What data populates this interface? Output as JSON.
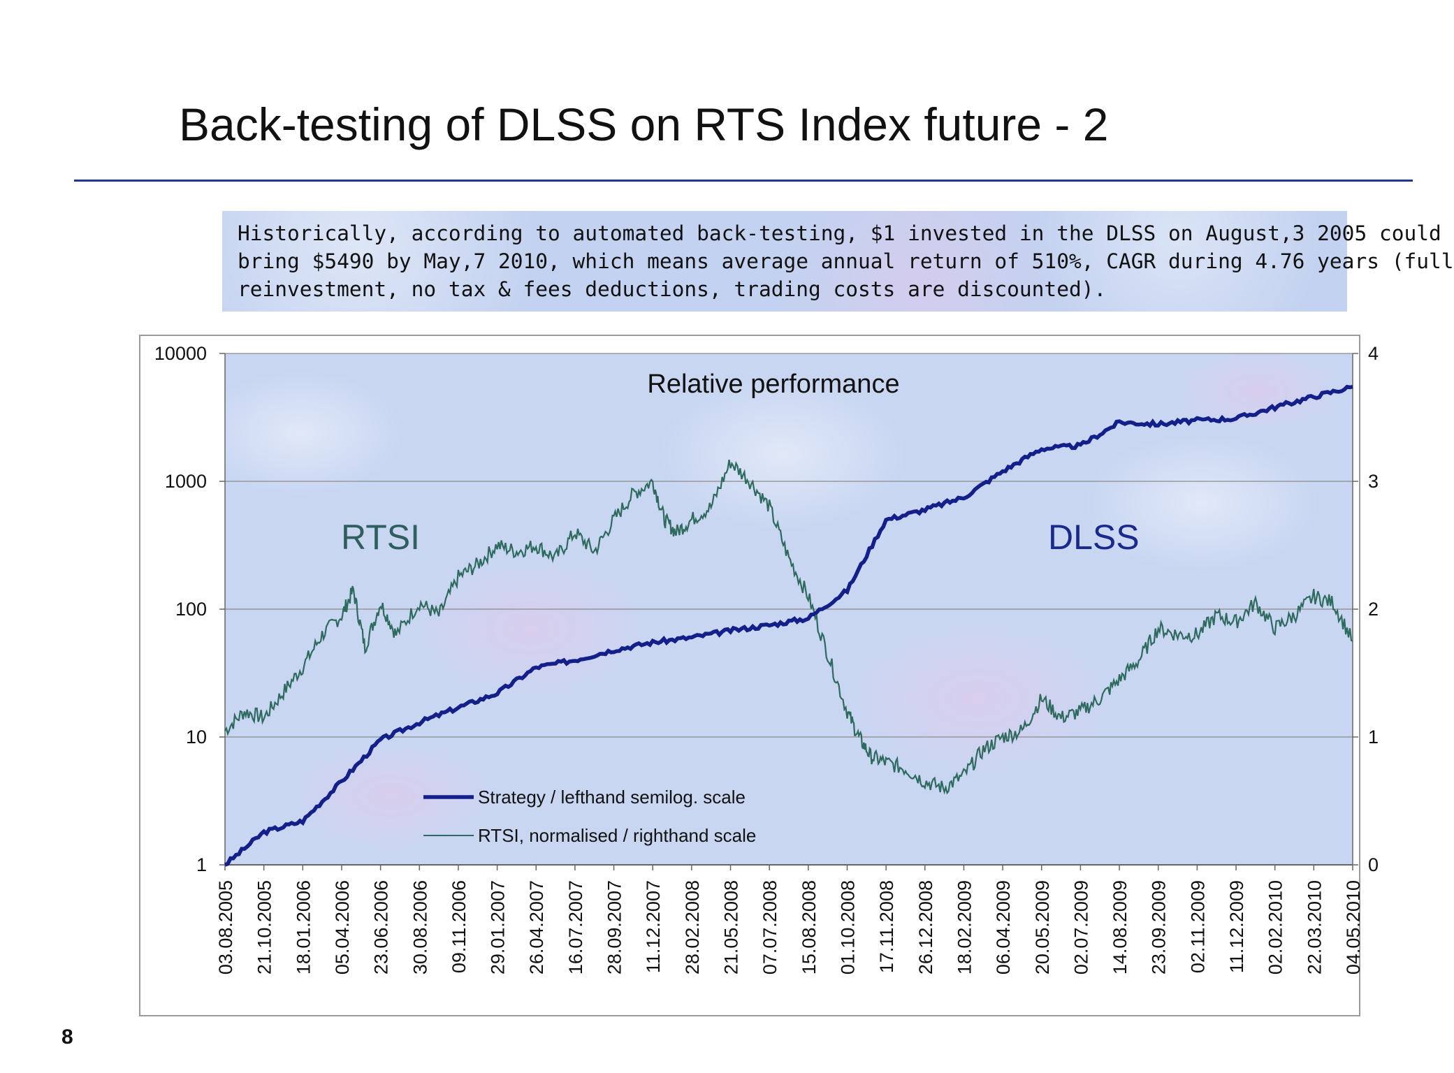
{
  "slide": {
    "title": "Back-testing of DLSS on RTS Index future - 2",
    "text_lines": [
      "Historically, according to automated back-testing, $1 invested in the DLSS on August,3 2005 could",
      "bring $5490 by May,7 2010, which means average annual return of 510%, CAGR during 4.76 years (full",
      "reinvestment, no tax & fees deductions, trading costs are discounted)."
    ],
    "page_number": "8",
    "accent_color": "#1a3a8f"
  },
  "chart_data": {
    "type": "line",
    "title": "Relative performance",
    "x_tick_labels": [
      "03.08.2005",
      "21.10.2005",
      "18.01.2006",
      "05.04.2006",
      "23.06.2006",
      "30.08.2006",
      "09.11.2006",
      "29.01.2007",
      "26.04.2007",
      "16.07.2007",
      "28.09.2007",
      "11.12.2007",
      "28.02.2008",
      "21.05.2008",
      "07.07.2008",
      "15.08.2008",
      "01.10.2008",
      "17.11.2008",
      "26.12.2008",
      "18.02.2009",
      "06.04.2009",
      "20.05.2009",
      "02.07.2009",
      "14.08.2009",
      "23.09.2009",
      "02.11.2009",
      "11.12.2009",
      "02.02.2010",
      "22.03.2010",
      "04.05.2010"
    ],
    "y_left": {
      "scale": "log",
      "range": [
        1,
        10000
      ],
      "ticks": [
        "1",
        "10",
        "100",
        "1000",
        "10000"
      ]
    },
    "y_right": {
      "scale": "linear",
      "range": [
        0,
        4
      ],
      "ticks": [
        "0",
        "1",
        "2",
        "3",
        "4"
      ]
    },
    "grid": "horizontal",
    "legend_position": "bottom-center",
    "annotations": [
      {
        "text": "RTSI",
        "color": "#2e5e5e"
      },
      {
        "text": "DLSS",
        "color": "#1a2a8c"
      }
    ],
    "series": [
      {
        "name": "Strategy / lefthand semilog. scale",
        "axis": "left",
        "color": "#14208a",
        "x_index": [
          0,
          1,
          2,
          3,
          4,
          5,
          6,
          7,
          8,
          9,
          10,
          11,
          12,
          13,
          14,
          15,
          16,
          17,
          18,
          19,
          20,
          21,
          22,
          23,
          24,
          25,
          26,
          27,
          28,
          29
        ],
        "values": [
          1,
          1.8,
          2.2,
          4.5,
          9.5,
          13,
          17,
          22,
          35,
          40,
          48,
          55,
          60,
          68,
          75,
          85,
          140,
          500,
          600,
          750,
          1200,
          1800,
          1900,
          2900,
          2800,
          3000,
          3100,
          3800,
          4600,
          5490
        ]
      },
      {
        "name": "RTSI, normalised / righthand scale",
        "axis": "right",
        "color": "#2e6b5e",
        "x_index": [
          0,
          0.5,
          1,
          1.5,
          2,
          2.5,
          3,
          3.3,
          3.6,
          4,
          4.4,
          5,
          5.5,
          6,
          6.5,
          7,
          7.5,
          8,
          8.5,
          9,
          9.5,
          10,
          10.5,
          11,
          11.3,
          11.6,
          12,
          12.5,
          13,
          13.5,
          14,
          14.5,
          15,
          15.5,
          16,
          16.3,
          16.6,
          17,
          17.5,
          18,
          18.5,
          19,
          19.5,
          20,
          20.5,
          21,
          21.5,
          22,
          22.5,
          23,
          23.5,
          24,
          24.5,
          25,
          25.5,
          26,
          26.5,
          27,
          27.5,
          28,
          28.5,
          29
        ],
        "values": [
          1.05,
          1.2,
          1.15,
          1.35,
          1.55,
          1.8,
          1.95,
          2.15,
          1.7,
          2.05,
          1.8,
          2.05,
          1.95,
          2.25,
          2.35,
          2.5,
          2.45,
          2.5,
          2.4,
          2.6,
          2.45,
          2.7,
          2.9,
          3.0,
          2.7,
          2.6,
          2.7,
          2.8,
          3.15,
          3.0,
          2.8,
          2.4,
          2.1,
          1.65,
          1.2,
          1.0,
          0.85,
          0.8,
          0.75,
          0.65,
          0.6,
          0.7,
          0.9,
          1.0,
          1.05,
          1.3,
          1.15,
          1.2,
          1.3,
          1.45,
          1.6,
          1.85,
          1.8,
          1.8,
          1.95,
          1.9,
          2.05,
          1.85,
          1.95,
          2.1,
          2.05,
          1.75
        ]
      }
    ]
  }
}
